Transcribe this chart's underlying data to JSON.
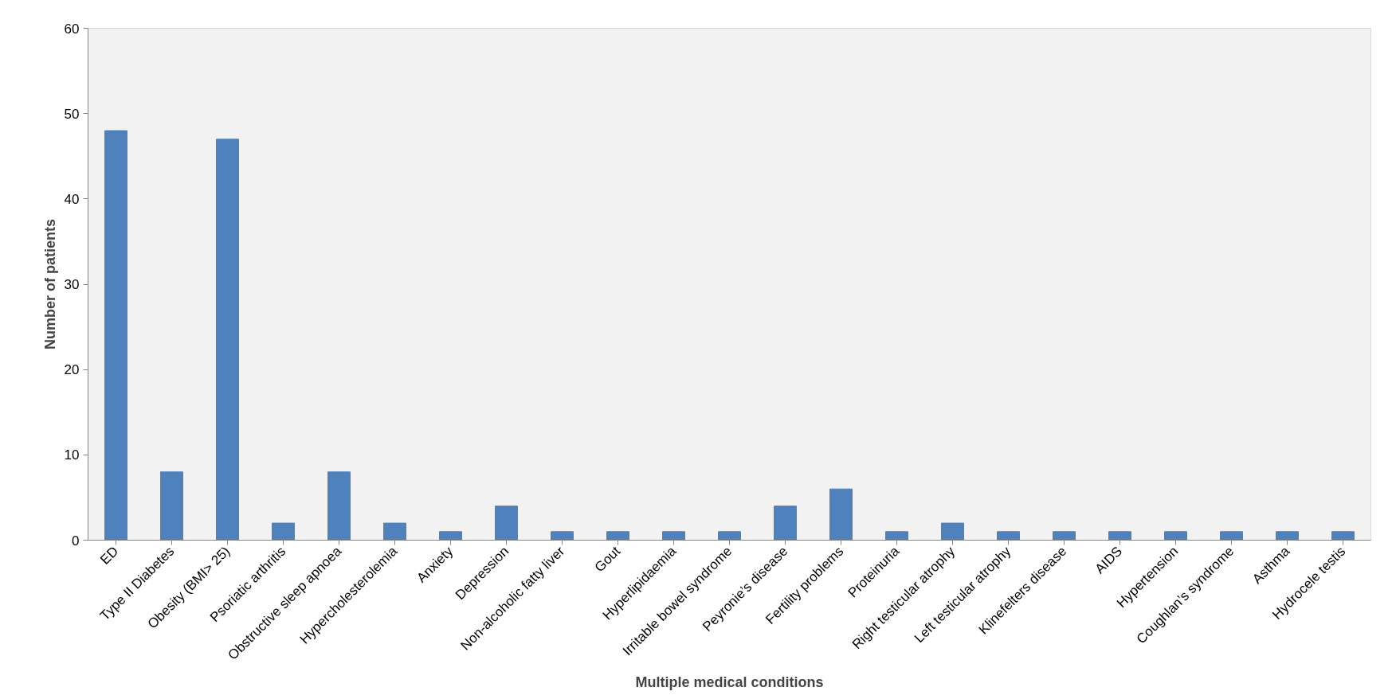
{
  "chart_data": {
    "type": "bar",
    "xlabel": "Multiple medical conditions",
    "ylabel": "Number of patients",
    "categories": [
      "ED",
      "Type II Diabetes",
      "Obesity (BMI> 25)",
      "Psoriatic arthritis",
      "Obstructive sleep apnoea",
      "Hypercholesterolemia",
      "Anxiety",
      "Depression",
      "Non-alcoholic fatty liver",
      "Gout",
      "Hyperlipidaemia",
      "Irritable bowel syndrome",
      "Peyronie’s disease",
      "Fertility problems",
      "Proteinuria",
      "Right testicular atrophy",
      "Left testicular atrophy",
      "Klinefelters disease",
      "AIDS",
      "Hypertension",
      "Coughlan’s syndrome",
      "Asthma",
      "Hydrocele testis"
    ],
    "values": [
      48,
      8,
      47,
      2,
      8,
      2,
      1,
      4,
      1,
      1,
      1,
      1,
      4,
      6,
      1,
      2,
      1,
      1,
      1,
      1,
      1,
      1,
      1
    ],
    "color": "#4f81bd",
    "ylim": [
      0,
      60
    ],
    "yticks": [
      0,
      10,
      20,
      30,
      40,
      50,
      60
    ],
    "grid": false
  }
}
